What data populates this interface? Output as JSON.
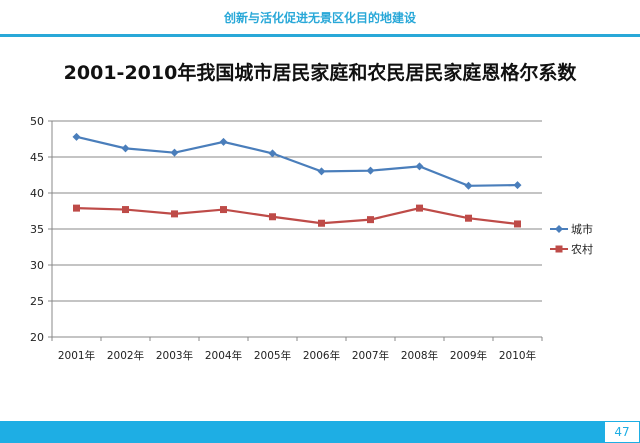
{
  "header": {
    "title": "创新与活化促进无景区化目的地建设"
  },
  "footer": {
    "page": "47"
  },
  "chart_data": {
    "type": "line",
    "title": "2001-2010年我国城市居民家庭和农民居民家庭恩格尔系数",
    "categories": [
      "2001年",
      "2002年",
      "2003年",
      "2004年",
      "2005年",
      "2006年",
      "2007年",
      "2008年",
      "2009年",
      "2010年"
    ],
    "ylim": [
      20,
      50
    ],
    "yticks": [
      20,
      25,
      30,
      35,
      40,
      45,
      50
    ],
    "grid": true,
    "legend": "right",
    "series": [
      {
        "name": "城市",
        "color": "#4a7ebb",
        "marker": "diamond",
        "values": [
          47.8,
          46.2,
          45.6,
          47.1,
          45.5,
          43.0,
          43.1,
          43.7,
          41.0,
          41.1
        ]
      },
      {
        "name": "农村",
        "color": "#be4b48",
        "marker": "square",
        "values": [
          37.9,
          37.7,
          37.1,
          37.7,
          36.7,
          35.8,
          36.3,
          37.9,
          36.5,
          35.7
        ]
      }
    ]
  }
}
